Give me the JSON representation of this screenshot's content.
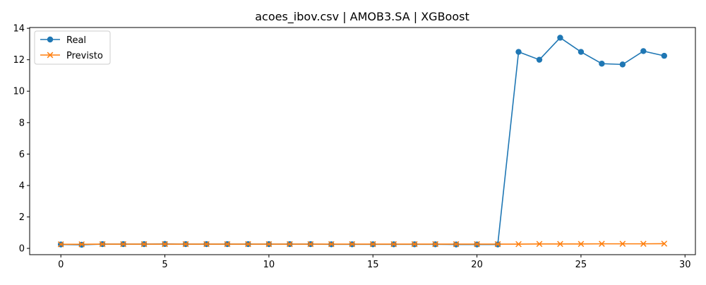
{
  "chart_data": {
    "type": "line",
    "title": "acoes_ibov.csv | AMOB3.SA | XGBoost",
    "xlabel": "",
    "ylabel": "",
    "xlim": [
      -1.5,
      30.5
    ],
    "ylim": [
      -0.4,
      14.05
    ],
    "x_ticks": [
      0,
      5,
      10,
      15,
      20,
      25,
      30
    ],
    "y_ticks": [
      0,
      2,
      4,
      6,
      8,
      10,
      12,
      14
    ],
    "grid": false,
    "legend_position": "top-left",
    "x": [
      0,
      1,
      2,
      3,
      4,
      5,
      6,
      7,
      8,
      9,
      10,
      11,
      12,
      13,
      14,
      15,
      16,
      17,
      18,
      19,
      20,
      21,
      22,
      23,
      24,
      25,
      26,
      27,
      28,
      29
    ],
    "series": [
      {
        "name": "Real",
        "color": "#1f77b4",
        "marker": "circle",
        "values": [
          0.25,
          0.23,
          0.27,
          0.27,
          0.27,
          0.28,
          0.27,
          0.27,
          0.27,
          0.27,
          0.27,
          0.27,
          0.27,
          0.26,
          0.26,
          0.26,
          0.26,
          0.26,
          0.26,
          0.25,
          0.25,
          0.25,
          12.5,
          12.0,
          13.4,
          12.5,
          11.75,
          11.7,
          12.55,
          12.25
        ]
      },
      {
        "name": "Previsto",
        "color": "#ff7f0e",
        "marker": "x",
        "values": [
          0.26,
          0.26,
          0.27,
          0.27,
          0.27,
          0.27,
          0.27,
          0.27,
          0.27,
          0.27,
          0.27,
          0.27,
          0.27,
          0.27,
          0.27,
          0.27,
          0.27,
          0.27,
          0.27,
          0.27,
          0.27,
          0.27,
          0.27,
          0.28,
          0.28,
          0.28,
          0.29,
          0.29,
          0.29,
          0.3
        ]
      }
    ]
  }
}
